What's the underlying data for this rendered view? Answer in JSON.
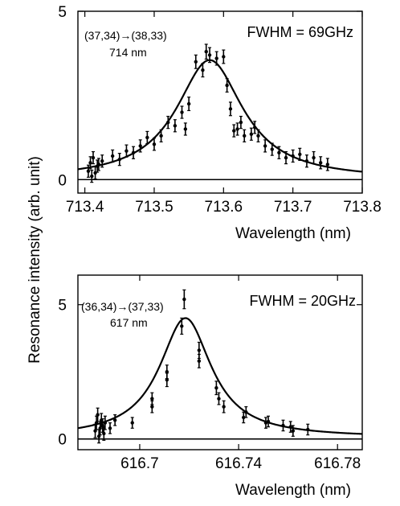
{
  "ylabel": "Resonance intensity (arb. unit)",
  "chart_data": [
    {
      "type": "scatter",
      "xlabel": "Wavelength (nm)",
      "ylabel": "Resonance intensity (arb. unit)",
      "xlim": [
        713.39,
        713.8
      ],
      "ylim": [
        -0.4,
        5
      ],
      "xticks": [
        713.4,
        713.5,
        713.6,
        713.7,
        713.8
      ],
      "xtick_labels": [
        "713.4",
        "713.5",
        "713.6",
        "713.7",
        "713.8"
      ],
      "yticks": [
        0,
        5
      ],
      "ytick_labels": [
        "0",
        "5"
      ],
      "grid": false,
      "baseline": 0,
      "annotations": [
        "(37,34)→(38,33)",
        "714 nm",
        "FWHM = 69GHz"
      ],
      "fit": {
        "type": "lorentzian",
        "center": 713.58,
        "fwhm_nm": 0.117,
        "amplitude": 3.55,
        "offset": 0
      },
      "points": {
        "x": [
          713.405,
          713.408,
          713.41,
          713.412,
          713.415,
          713.418,
          713.42,
          713.425,
          713.44,
          713.45,
          713.46,
          713.47,
          713.48,
          713.49,
          713.5,
          713.51,
          713.52,
          713.53,
          713.54,
          713.545,
          713.55,
          713.56,
          713.57,
          713.575,
          713.58,
          713.59,
          713.6,
          713.605,
          713.61,
          713.615,
          713.62,
          713.625,
          713.63,
          713.64,
          713.645,
          713.65,
          713.66,
          713.67,
          713.68,
          713.69,
          713.7,
          713.71,
          713.72,
          713.73,
          713.74,
          713.75
        ],
        "y": [
          0.25,
          0.5,
          0.1,
          0.65,
          0.2,
          0.4,
          0.45,
          0.55,
          0.7,
          0.6,
          0.85,
          0.8,
          1.0,
          1.25,
          1.05,
          1.3,
          1.7,
          1.6,
          2.0,
          1.5,
          2.25,
          3.5,
          3.25,
          3.8,
          3.7,
          3.6,
          3.65,
          2.8,
          2.1,
          1.45,
          1.5,
          1.7,
          1.3,
          1.35,
          1.55,
          1.3,
          1.0,
          0.9,
          0.8,
          0.65,
          0.7,
          0.75,
          0.55,
          0.65,
          0.5,
          0.45
        ],
        "err": [
          0.18,
          0.18,
          0.18,
          0.18,
          0.18,
          0.18,
          0.18,
          0.18,
          0.18,
          0.18,
          0.18,
          0.18,
          0.18,
          0.18,
          0.18,
          0.18,
          0.18,
          0.18,
          0.18,
          0.18,
          0.2,
          0.2,
          0.2,
          0.22,
          0.22,
          0.2,
          0.2,
          0.2,
          0.2,
          0.18,
          0.18,
          0.18,
          0.18,
          0.18,
          0.18,
          0.18,
          0.18,
          0.18,
          0.18,
          0.18,
          0.18,
          0.18,
          0.18,
          0.18,
          0.18,
          0.18
        ]
      }
    },
    {
      "type": "scatter",
      "xlabel": "Wavelength (nm)",
      "ylabel": "Resonance intensity (arb. unit)",
      "xlim": [
        616.675,
        616.79
      ],
      "ylim": [
        -0.4,
        6.1
      ],
      "xticks": [
        616.7,
        616.74,
        616.78
      ],
      "xtick_labels": [
        "616.7",
        "616.74",
        "616.78"
      ],
      "yticks": [
        0,
        5
      ],
      "ytick_labels": [
        "0",
        "5"
      ],
      "grid": false,
      "baseline": 0,
      "annotations": [
        "(36,34)→(37,33)",
        "617 nm",
        "FWHM = 20GHz"
      ],
      "fit": {
        "type": "lorentzian",
        "center": 616.7185,
        "fwhm_nm": 0.0255,
        "amplitude": 4.45,
        "offset": 0.05
      },
      "points": {
        "x": [
          616.682,
          616.6825,
          616.683,
          616.6835,
          616.684,
          616.6845,
          616.685,
          616.6855,
          616.686,
          616.688,
          616.69,
          616.697,
          616.705,
          616.705,
          616.711,
          616.711,
          616.717,
          616.718,
          616.724,
          616.724,
          616.731,
          616.732,
          616.734,
          616.742,
          616.743,
          616.751,
          616.752,
          616.758,
          616.761,
          616.762,
          616.768
        ],
        "y": [
          0.3,
          0.6,
          0.9,
          0.1,
          0.4,
          0.7,
          0.5,
          0.2,
          0.6,
          0.4,
          0.7,
          0.6,
          1.2,
          1.5,
          2.5,
          2.2,
          4.2,
          5.2,
          3.3,
          2.9,
          1.9,
          1.5,
          1.2,
          0.8,
          1.0,
          0.6,
          0.65,
          0.5,
          0.45,
          0.3,
          0.35
        ],
        "err": [
          0.25,
          0.25,
          0.25,
          0.25,
          0.25,
          0.25,
          0.25,
          0.25,
          0.25,
          0.2,
          0.2,
          0.2,
          0.22,
          0.22,
          0.25,
          0.25,
          0.3,
          0.35,
          0.3,
          0.25,
          0.25,
          0.22,
          0.22,
          0.2,
          0.2,
          0.2,
          0.2,
          0.2,
          0.2,
          0.2,
          0.2
        ]
      }
    }
  ]
}
